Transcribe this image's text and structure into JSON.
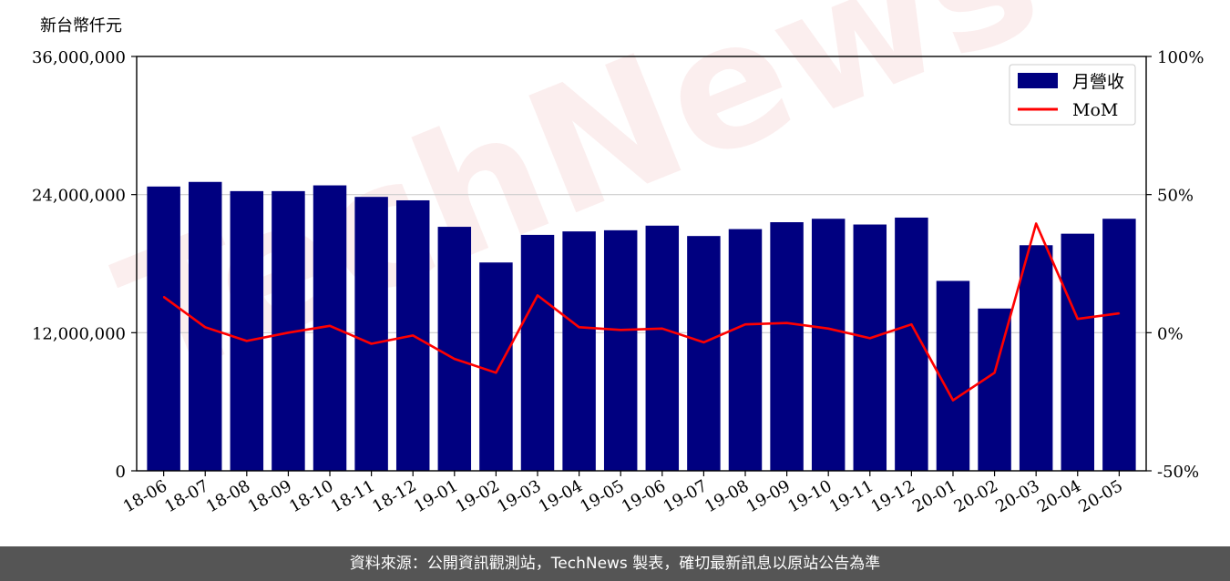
{
  "chart_data": {
    "type": "bar",
    "y_unit_label": "新台幣仟元",
    "categories": [
      "18-06",
      "18-07",
      "18-08",
      "18-09",
      "18-10",
      "18-11",
      "18-12",
      "19-01",
      "19-02",
      "19-03",
      "19-04",
      "19-05",
      "19-06",
      "19-07",
      "19-08",
      "19-09",
      "19-10",
      "19-11",
      "19-12",
      "20-01",
      "20-02",
      "20-03",
      "20-04",
      "20-05"
    ],
    "series": [
      {
        "name": "月營收",
        "axis": "left",
        "type": "bar",
        "color": "#000080",
        "values": [
          24700000,
          25100000,
          24300000,
          24300000,
          24800000,
          23800000,
          23500000,
          21200000,
          18100000,
          20500000,
          20800000,
          20900000,
          21300000,
          20400000,
          21000000,
          21600000,
          21900000,
          21400000,
          22000000,
          16500000,
          14100000,
          19600000,
          20600000,
          21900000
        ]
      },
      {
        "name": "MoM",
        "axis": "right",
        "type": "line",
        "color": "#ff0000",
        "values": [
          13,
          2,
          -3,
          0,
          2.5,
          -4,
          -1,
          -9.5,
          -14.5,
          13.5,
          2,
          1,
          1.5,
          -3.5,
          3,
          3.5,
          1.5,
          -2,
          3,
          -24.5,
          -14.5,
          39.5,
          5,
          7
        ]
      }
    ],
    "left_axis": {
      "ylim": [
        0,
        36000000
      ],
      "ticks": [
        0,
        12000000,
        24000000,
        36000000
      ],
      "tick_labels": [
        "0",
        "12,000,000",
        "24,000,000",
        "36,000,000"
      ]
    },
    "right_axis": {
      "ylim": [
        -50,
        100
      ],
      "ticks": [
        -50,
        0,
        50,
        100
      ],
      "tick_labels": [
        "-50%",
        "0%",
        "50%",
        "100%"
      ]
    },
    "grid": "horizontal",
    "legend": {
      "position": "top-right",
      "entries": [
        "月營收",
        "MoM"
      ]
    },
    "watermark": "TechNews"
  },
  "footer": {
    "text": "資料來源：公開資訊觀測站，TechNews 製表，確切最新訊息以原站公告為準"
  },
  "colors": {
    "bar": "#000080",
    "line": "#ff0000",
    "footer_bg": "#555555",
    "grid": "#cccccc"
  }
}
